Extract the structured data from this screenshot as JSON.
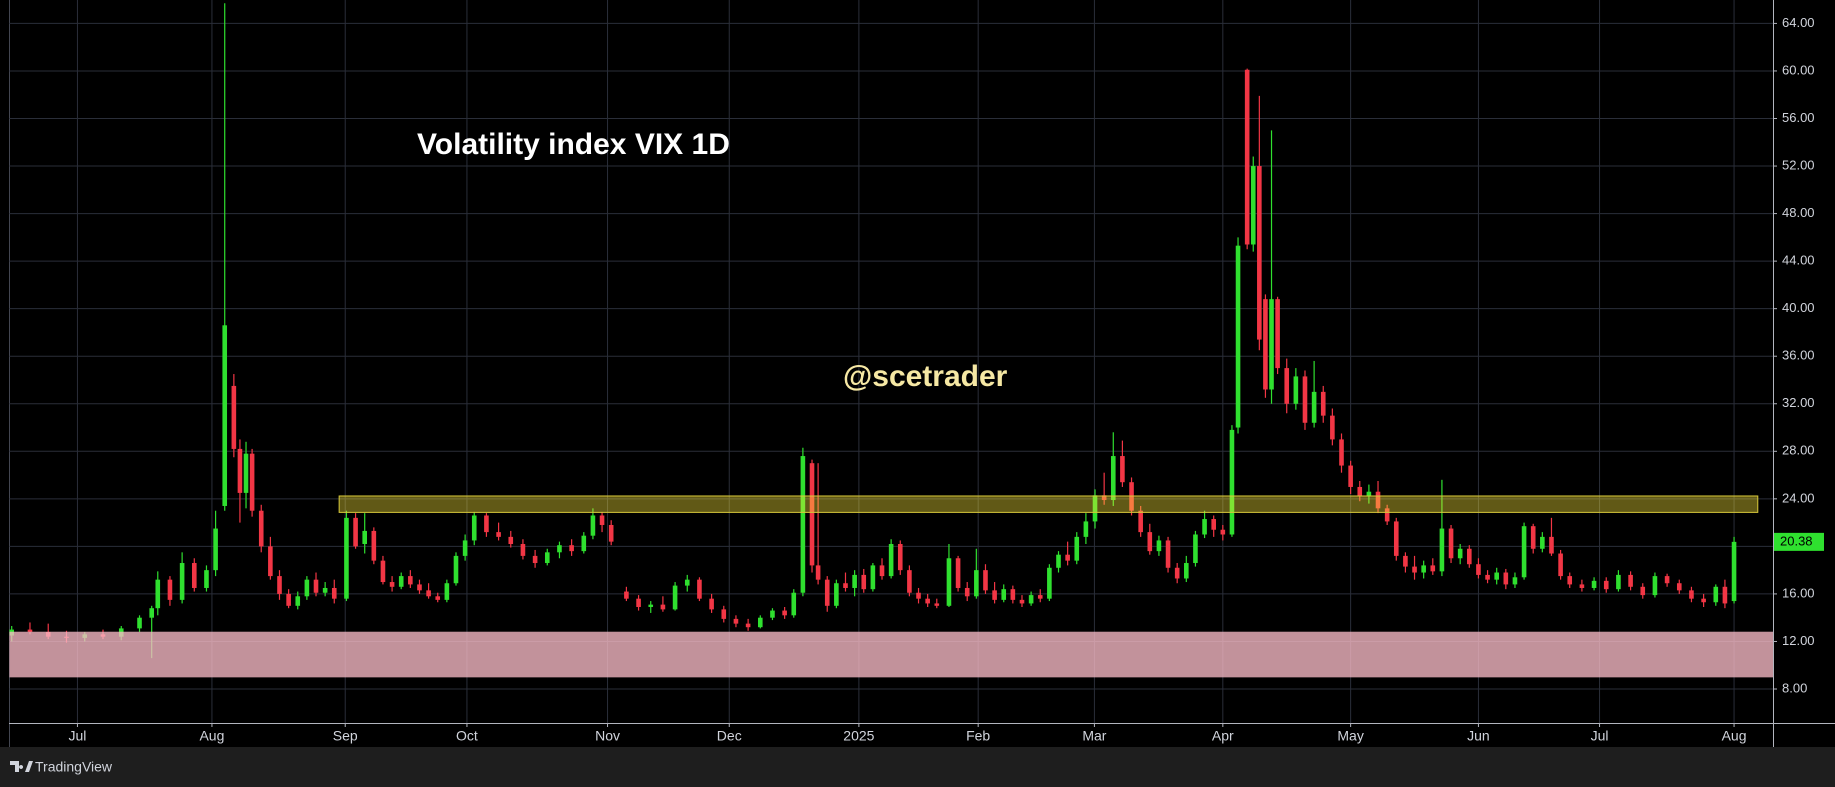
{
  "chart_data": {
    "type": "candlestick",
    "title": "Volatility index VIX 1D",
    "watermark": "@scetrader",
    "up_color": "#2fe02f",
    "down_color": "#f23645",
    "xlim": [
      -0.38,
      289.4
    ],
    "ylim": [
      5.14,
      65.97
    ],
    "grid": true,
    "xticks": [
      {
        "value": 10.8,
        "label": "Jul"
      },
      {
        "value": 32.9,
        "label": "Aug"
      },
      {
        "value": 54.8,
        "label": "Sep"
      },
      {
        "value": 74.8,
        "label": "Oct"
      },
      {
        "value": 97.9,
        "label": "Nov"
      },
      {
        "value": 117.9,
        "label": "Dec"
      },
      {
        "value": 139.2,
        "label": "2025"
      },
      {
        "value": 158.8,
        "label": "Feb"
      },
      {
        "value": 177.9,
        "label": "Mar"
      },
      {
        "value": 199,
        "label": "Apr"
      },
      {
        "value": 220,
        "label": "May"
      },
      {
        "value": 241,
        "label": "Jun"
      },
      {
        "value": 260.9,
        "label": "Jul"
      },
      {
        "value": 283,
        "label": "Aug"
      }
    ],
    "yticks": [
      {
        "value": 8,
        "label": "8.00"
      },
      {
        "value": 12,
        "label": "12.00"
      },
      {
        "value": 16,
        "label": "16.00"
      },
      {
        "value": 20,
        "label": "20.00"
      },
      {
        "value": 24,
        "label": "24.00"
      },
      {
        "value": 28,
        "label": "28.00"
      },
      {
        "value": 32,
        "label": "32.00"
      },
      {
        "value": 36,
        "label": "36.00"
      },
      {
        "value": 40,
        "label": "40.00"
      },
      {
        "value": 44,
        "label": "44.00"
      },
      {
        "value": 48,
        "label": "48.00"
      },
      {
        "value": 52,
        "label": "52.00"
      },
      {
        "value": 56,
        "label": "56.00"
      },
      {
        "value": 60,
        "label": "60.00"
      },
      {
        "value": 64,
        "label": "64.00"
      }
    ],
    "zones": [
      {
        "ylim": [
          8.98,
          12.82
        ],
        "color": "rgba(248,187,198,0.78)"
      },
      {
        "ylim": [
          22.86,
          24.24
        ],
        "xlim": [
          53.8,
          286.9
        ],
        "color": "rgba(255,235,59,0.38)",
        "border": "#d8c93a"
      }
    ],
    "x": [
      0,
      3,
      6,
      9,
      12,
      15,
      18,
      21,
      23,
      24,
      26,
      28,
      30,
      32,
      33.5,
      35,
      36.5,
      37.5,
      38.5,
      39.5,
      41,
      42.5,
      44,
      45.5,
      47,
      48.5,
      50,
      51.5,
      53,
      55,
      56.5,
      58,
      59.5,
      61,
      62.5,
      64,
      65.5,
      67,
      68.5,
      70,
      71.5,
      73,
      74.5,
      76,
      78,
      80,
      82,
      84,
      86,
      88,
      90,
      92,
      94,
      95.5,
      97,
      98.5,
      101,
      103,
      105,
      107,
      109,
      111,
      113,
      115,
      117,
      119,
      121,
      123,
      125,
      127,
      128.5,
      130,
      131.5,
      132.5,
      134,
      135.5,
      137,
      138.5,
      140,
      141.5,
      143,
      144.5,
      146,
      147.5,
      149,
      150.5,
      152,
      154,
      155.5,
      157,
      158.5,
      160,
      161.5,
      163,
      164.5,
      166,
      167.5,
      169,
      170.5,
      172,
      173.5,
      175,
      176.5,
      178,
      179.5,
      181,
      182.5,
      184,
      185.5,
      187,
      188.5,
      190,
      191.5,
      193,
      194.5,
      196,
      197.5,
      199,
      200.5,
      201.5,
      203,
      204,
      205,
      206,
      207,
      208,
      209.5,
      211,
      212.5,
      214,
      215.5,
      217,
      218.5,
      220,
      221.5,
      223,
      224.5,
      226,
      227.5,
      229,
      230.5,
      232,
      233.5,
      235,
      236.5,
      238,
      239.5,
      241,
      242.5,
      244,
      245.5,
      247,
      248.5,
      250,
      251.5,
      253,
      254.5,
      256,
      258,
      260,
      262,
      264,
      266,
      268,
      270,
      272,
      274,
      276,
      278,
      280,
      281.5,
      283
    ],
    "open": [
      12.5,
      13.0,
      12.8,
      12.4,
      12.3,
      12.6,
      12.4,
      13.1,
      14.0,
      14.8,
      17.2,
      15.5,
      18.6,
      16.5,
      18.0,
      23.4,
      33.5,
      28.2,
      24.5,
      27.8,
      23.0,
      20.0,
      17.5,
      16.0,
      15.0,
      15.8,
      17.2,
      16.1,
      16.5,
      15.6,
      22.4,
      20.2,
      21.3,
      18.8,
      17.0,
      16.6,
      17.5,
      16.8,
      16.3,
      15.8,
      15.5,
      16.9,
      19.2,
      20.5,
      22.6,
      21.2,
      20.8,
      20.2,
      19.2,
      18.6,
      19.5,
      20.1,
      19.6,
      20.9,
      22.6,
      21.8,
      16.2,
      15.6,
      14.9,
      15.1,
      14.7,
      16.7,
      17.2,
      15.6,
      14.7,
      13.9,
      13.5,
      13.2,
      14.0,
      14.6,
      14.2,
      16.1,
      27.0,
      18.4,
      17.2,
      15.0,
      16.9,
      16.5,
      17.6,
      16.4,
      18.4,
      17.5,
      20.2,
      18.0,
      16.1,
      15.6,
      15.2,
      15.0,
      19.0,
      16.5,
      15.8,
      18.0,
      16.3,
      15.5,
      16.4,
      15.5,
      15.2,
      15.9,
      15.6,
      18.2,
      19.3,
      18.8,
      20.8,
      22.1,
      24.3,
      23.9,
      27.6,
      25.4,
      23.0,
      21.2,
      19.6,
      20.5,
      18.2,
      17.3,
      18.6,
      21.0,
      22.3,
      21.4,
      21.0,
      30.0,
      60.1,
      45.4,
      52.0,
      40.8,
      33.2,
      40.8,
      35.0,
      32.0,
      34.3,
      30.4,
      33.0,
      31.0,
      29.0,
      26.8,
      25.0,
      24.2,
      24.6,
      23.2,
      22.1,
      19.2,
      18.3,
      17.8,
      18.4,
      17.9,
      21.5,
      19.0,
      19.8,
      18.5,
      17.6,
      17.2,
      17.8,
      16.8,
      17.4,
      21.7,
      19.8,
      20.8,
      19.4,
      17.5,
      16.8,
      16.5,
      17.1,
      16.4,
      17.6,
      16.6,
      15.9,
      17.5,
      16.9,
      16.3,
      15.6,
      15.3,
      16.6,
      15.4
    ],
    "high": [
      13.3,
      13.6,
      13.5,
      12.9,
      12.8,
      13.0,
      13.3,
      14.2,
      15.0,
      17.9,
      17.5,
      19.5,
      19.0,
      18.4,
      23.0,
      65.7,
      34.5,
      29.0,
      28.8,
      28.2,
      23.5,
      20.8,
      18.0,
      16.4,
      16.2,
      17.5,
      17.8,
      17.0,
      17.2,
      23.0,
      22.8,
      22.8,
      21.6,
      19.2,
      17.5,
      17.8,
      18.0,
      17.2,
      16.9,
      16.1,
      17.2,
      19.5,
      21.0,
      22.9,
      22.8,
      22.0,
      21.3,
      20.6,
      19.7,
      19.8,
      20.4,
      20.6,
      21.2,
      23.2,
      22.9,
      22.2,
      16.6,
      15.9,
      15.4,
      15.8,
      17.0,
      17.6,
      17.4,
      16.0,
      15.0,
      14.2,
      13.9,
      14.2,
      14.8,
      14.9,
      16.4,
      28.3,
      27.3,
      27.0,
      17.5,
      17.2,
      17.8,
      18.0,
      18.1,
      18.6,
      19.0,
      20.6,
      20.5,
      18.4,
      16.5,
      16.0,
      15.6,
      20.2,
      19.2,
      17.0,
      19.8,
      18.5,
      17.0,
      16.8,
      16.7,
      15.9,
      16.2,
      16.4,
      18.5,
      19.6,
      20.4,
      21.2,
      22.8,
      24.8,
      26.2,
      29.6,
      28.9,
      25.8,
      23.4,
      21.9,
      20.9,
      20.8,
      18.6,
      19.2,
      21.3,
      23.0,
      22.6,
      21.8,
      30.2,
      46.0,
      60.2,
      52.8,
      57.9,
      41.2,
      55.0,
      41.0,
      35.8,
      35.0,
      34.8,
      35.6,
      33.5,
      31.6,
      29.5,
      27.2,
      25.5,
      25.2,
      25.5,
      23.5,
      22.4,
      19.5,
      19.2,
      18.8,
      19.0,
      25.6,
      21.8,
      20.2,
      20.1,
      19.0,
      18.0,
      18.2,
      18.1,
      17.8,
      22.0,
      21.9,
      21.2,
      22.4,
      19.7,
      17.8,
      17.2,
      17.4,
      17.4,
      18.0,
      17.9,
      16.9,
      17.8,
      17.7,
      17.2,
      16.6,
      16.0,
      16.8,
      17.2,
      20.8
    ],
    "low": [
      12.0,
      12.6,
      12.2,
      11.9,
      12.0,
      12.2,
      12.1,
      12.8,
      10.6,
      14.2,
      15.0,
      15.2,
      16.2,
      16.2,
      17.5,
      23.0,
      27.5,
      22.0,
      23.2,
      22.5,
      19.5,
      17.2,
      15.5,
      14.8,
      14.7,
      15.5,
      15.8,
      15.8,
      15.2,
      15.4,
      19.8,
      19.4,
      18.5,
      16.8,
      16.2,
      16.4,
      16.5,
      16.0,
      15.6,
      15.3,
      15.3,
      16.7,
      18.8,
      20.1,
      20.8,
      20.5,
      19.9,
      18.9,
      18.2,
      18.4,
      19.0,
      19.2,
      19.4,
      20.6,
      21.2,
      20.1,
      15.4,
      14.6,
      14.4,
      14.5,
      14.6,
      16.2,
      15.4,
      14.4,
      13.6,
      13.2,
      12.9,
      13.1,
      13.8,
      13.9,
      14.0,
      15.8,
      17.8,
      16.8,
      14.5,
      14.8,
      16.2,
      15.8,
      16.1,
      16.2,
      17.2,
      17.3,
      17.6,
      15.8,
      15.2,
      14.9,
      14.8,
      14.9,
      16.2,
      15.4,
      15.6,
      16.0,
      15.2,
      15.3,
      15.2,
      14.9,
      15.0,
      15.3,
      15.4,
      17.8,
      18.4,
      18.5,
      20.2,
      21.5,
      23.5,
      23.4,
      25.0,
      22.6,
      20.8,
      19.3,
      19.2,
      17.8,
      16.9,
      17.0,
      18.3,
      20.7,
      20.8,
      20.5,
      20.8,
      29.5,
      45.0,
      44.8,
      36.5,
      32.5,
      32.0,
      34.5,
      31.2,
      31.5,
      29.8,
      30.0,
      30.4,
      28.5,
      26.2,
      24.4,
      23.8,
      23.6,
      22.8,
      21.8,
      18.8,
      17.8,
      17.2,
      17.3,
      17.6,
      17.5,
      18.6,
      18.5,
      18.2,
      17.3,
      16.9,
      16.8,
      16.4,
      16.5,
      17.2,
      19.4,
      19.5,
      19.2,
      17.2,
      16.5,
      16.2,
      16.3,
      16.1,
      16.2,
      16.3,
      15.6,
      15.7,
      16.6,
      16.0,
      15.3,
      14.9,
      15.0,
      14.8,
      15.2
    ],
    "close": [
      13.0,
      12.8,
      12.4,
      12.3,
      12.6,
      12.4,
      13.1,
      14.0,
      14.8,
      17.2,
      15.5,
      18.6,
      16.5,
      18.0,
      21.5,
      38.6,
      28.2,
      24.5,
      27.8,
      23.0,
      20.0,
      17.5,
      16.0,
      15.0,
      15.8,
      17.2,
      16.1,
      16.5,
      15.6,
      22.4,
      20.0,
      21.3,
      18.8,
      17.0,
      16.6,
      17.5,
      16.8,
      16.3,
      15.8,
      15.5,
      16.9,
      19.2,
      20.5,
      22.6,
      21.2,
      20.8,
      20.2,
      19.2,
      18.6,
      19.5,
      20.1,
      19.6,
      20.9,
      22.6,
      21.8,
      20.4,
      15.6,
      14.9,
      15.1,
      14.7,
      16.7,
      17.2,
      15.6,
      14.7,
      13.9,
      13.5,
      13.2,
      14.0,
      14.6,
      14.2,
      16.1,
      27.6,
      18.4,
      17.2,
      15.0,
      16.9,
      16.5,
      17.6,
      16.4,
      18.4,
      17.5,
      20.2,
      18.0,
      16.1,
      15.6,
      15.2,
      15.0,
      19.0,
      16.5,
      15.8,
      18.0,
      16.3,
      15.5,
      16.4,
      15.5,
      15.2,
      15.9,
      15.6,
      18.2,
      19.3,
      18.8,
      20.8,
      22.1,
      24.3,
      23.9,
      27.6,
      25.4,
      23.0,
      21.2,
      19.6,
      20.5,
      18.2,
      17.3,
      18.6,
      21.0,
      22.3,
      21.4,
      21.0,
      29.8,
      45.3,
      45.4,
      52.0,
      37.4,
      33.2,
      40.8,
      35.0,
      32.0,
      34.3,
      30.4,
      33.0,
      31.0,
      29.0,
      26.8,
      25.0,
      24.2,
      24.6,
      23.2,
      22.1,
      19.2,
      18.3,
      17.8,
      18.4,
      17.9,
      21.5,
      19.0,
      19.8,
      18.5,
      17.6,
      17.2,
      17.8,
      16.8,
      17.4,
      21.7,
      19.8,
      20.8,
      19.4,
      17.5,
      16.8,
      16.5,
      17.1,
      16.4,
      17.6,
      16.6,
      15.9,
      17.5,
      16.9,
      16.3,
      15.6,
      15.3,
      16.6,
      15.2,
      20.38
    ]
  },
  "footer": "TradingView"
}
